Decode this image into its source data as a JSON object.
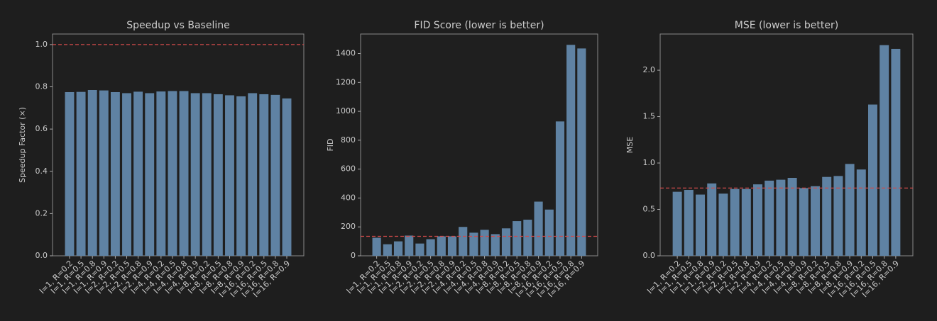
{
  "chart_data": [
    {
      "type": "bar",
      "title": "Speedup vs Baseline",
      "y_label": "Speedup Factor (×)",
      "categories": [
        "I=1, R=0.2",
        "I=1, R=0.5",
        "I=1, R=0.8",
        "I=1, R=0.9",
        "I=2, R=0.2",
        "I=2, R=0.5",
        "I=2, R=0.8",
        "I=2, R=0.9",
        "I=4, R=0.2",
        "I=4, R=0.5",
        "I=4, R=0.8",
        "I=4, R=0.9",
        "I=8, R=0.2",
        "I=8, R=0.5",
        "I=8, R=0.8",
        "I=8, R=0.9",
        "I=16, R=0.2",
        "I=16, R=0.5",
        "I=16, R=0.8",
        "I=16, R=0.9"
      ],
      "values": [
        0.775,
        0.776,
        0.785,
        0.783,
        0.775,
        0.77,
        0.777,
        0.77,
        0.778,
        0.78,
        0.78,
        0.77,
        0.77,
        0.765,
        0.76,
        0.755,
        0.77,
        0.765,
        0.762,
        0.745
      ],
      "color": "#5f82a3",
      "reference_line": {
        "value": 1.0,
        "color": "#d04a4a"
      },
      "ylim": [
        0,
        1.05
      ],
      "yticks": [
        {
          "value": 0,
          "label": "0.0"
        },
        {
          "value": 0.2,
          "label": "0.2"
        },
        {
          "value": 0.4,
          "label": "0.4"
        },
        {
          "value": 0.6,
          "label": "0.6"
        },
        {
          "value": 0.8,
          "label": "0.8"
        },
        {
          "value": 1.0,
          "label": "1.0"
        }
      ]
    },
    {
      "type": "bar",
      "title": "FID Score (lower is better)",
      "y_label": "FID",
      "categories": [
        "I=1, R=0.2",
        "I=1, R=0.5",
        "I=1, R=0.8",
        "I=1, R=0.9",
        "I=2, R=0.2",
        "I=2, R=0.5",
        "I=2, R=0.8",
        "I=2, R=0.9",
        "I=4, R=0.2",
        "I=4, R=0.5",
        "I=4, R=0.8",
        "I=4, R=0.9",
        "I=8, R=0.2",
        "I=8, R=0.5",
        "I=8, R=0.8",
        "I=8, R=0.9",
        "I=16, R=0.2",
        "I=16, R=0.5",
        "I=16, R=0.8",
        "I=16, R=0.9"
      ],
      "values": [
        125,
        80,
        100,
        140,
        85,
        115,
        135,
        135,
        200,
        160,
        180,
        150,
        190,
        240,
        250,
        375,
        320,
        930,
        1460,
        1435
      ],
      "color": "#5f82a3",
      "reference_line": {
        "value": 135,
        "color": "#d04a4a"
      },
      "ylim": [
        0,
        1535
      ],
      "yticks": [
        0,
        200,
        400,
        600,
        800,
        1000,
        1200,
        1400
      ]
    },
    {
      "type": "bar",
      "title": "MSE (lower is better)",
      "y_label": "MSE",
      "categories": [
        "I=1, R=0.2",
        "I=1, R=0.5",
        "I=1, R=0.8",
        "I=1, R=0.9",
        "I=2, R=0.2",
        "I=2, R=0.5",
        "I=2, R=0.8",
        "I=2, R=0.9",
        "I=4, R=0.2",
        "I=4, R=0.5",
        "I=4, R=0.8",
        "I=4, R=0.9",
        "I=8, R=0.2",
        "I=8, R=0.5",
        "I=8, R=0.8",
        "I=8, R=0.9",
        "I=16, R=0.2",
        "I=16, R=0.5",
        "I=16, R=0.8",
        "I=16, R=0.9"
      ],
      "values": [
        0.69,
        0.71,
        0.66,
        0.78,
        0.67,
        0.72,
        0.72,
        0.77,
        0.81,
        0.82,
        0.84,
        0.73,
        0.75,
        0.85,
        0.86,
        0.99,
        0.93,
        1.63,
        2.27,
        2.23
      ],
      "color": "#5f82a3",
      "reference_line": {
        "value": 0.73,
        "color": "#d04a4a"
      },
      "ylim": [
        0,
        2.39
      ],
      "yticks": [
        {
          "value": 0,
          "label": "0.0"
        },
        {
          "value": 0.5,
          "label": "0.5"
        },
        {
          "value": 1.0,
          "label": "1.0"
        },
        {
          "value": 1.5,
          "label": "1.5"
        },
        {
          "value": 2.0,
          "label": "2.0"
        }
      ]
    }
  ]
}
